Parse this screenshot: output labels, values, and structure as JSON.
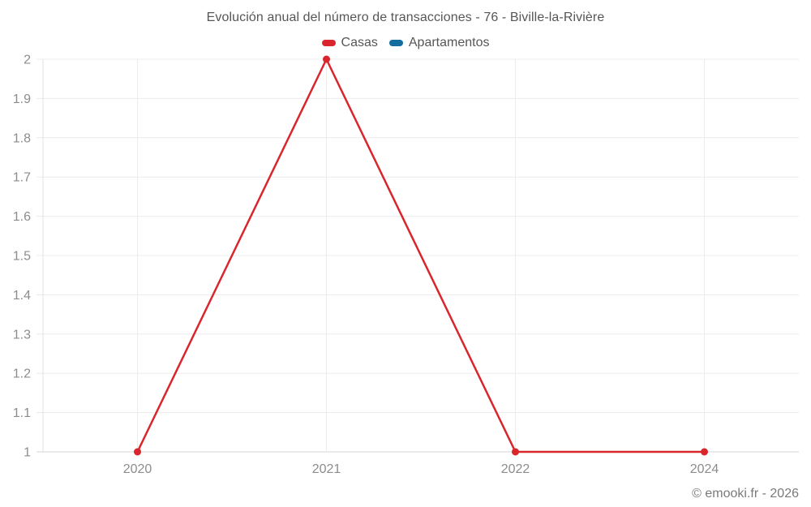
{
  "page": {
    "footer": "© emooki.fr - 2026"
  },
  "chart_data": {
    "type": "line",
    "title": "Evolución anual del número de transacciones - 76 - Biville-la-Rivière",
    "categories": [
      "2020",
      "2021",
      "2022",
      "2024"
    ],
    "series": [
      {
        "name": "Casas",
        "color": "#d8262c",
        "values": [
          1,
          2,
          1,
          1
        ]
      },
      {
        "name": "Apartamentos",
        "color": "#136d9e",
        "values": []
      }
    ],
    "xlabel": "",
    "ylabel": "",
    "ylim": [
      1,
      2
    ],
    "ytick_step": 0.1,
    "grid": true,
    "legend_position": "top",
    "accent_colors": {
      "casas": "#d8262c",
      "apartamentos": "#136d9e"
    }
  }
}
